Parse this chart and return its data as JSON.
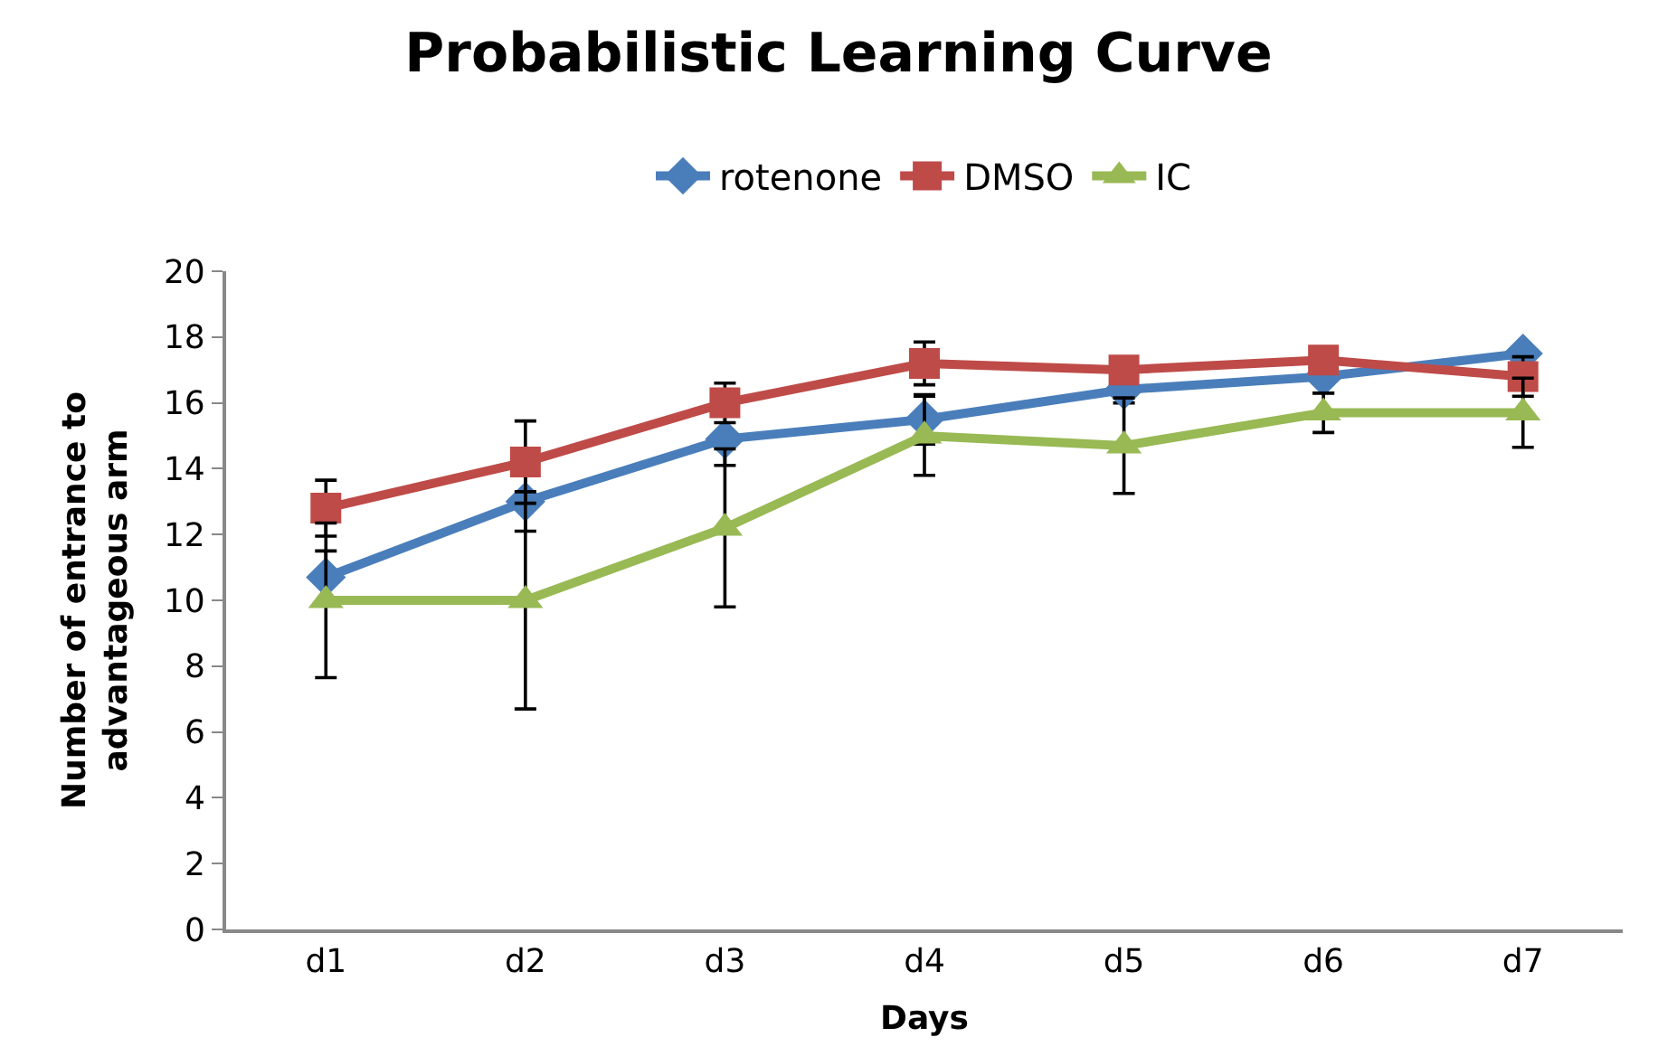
{
  "chart_data": {
    "type": "line",
    "title": "Probabilistic Learning Curve",
    "xlabel": "Days",
    "ylabel": "Number of entrance to\nadvantageous arm",
    "categories": [
      "d1",
      "d2",
      "d3",
      "d4",
      "d5",
      "d6",
      "d7"
    ],
    "series": [
      {
        "name": "rotenone",
        "color": "#4a7ebb",
        "marker": "diamond",
        "values": [
          10.7,
          13.0,
          14.9,
          15.5,
          16.4,
          16.8,
          17.5
        ],
        "errors": [
          0.8,
          0.9,
          0.8,
          0.75,
          0.4,
          0.5,
          null
        ]
      },
      {
        "name": "DMSO",
        "color": "#be4b48",
        "marker": "square",
        "values": [
          12.8,
          14.2,
          16.0,
          17.2,
          17.0,
          17.3,
          16.8
        ],
        "errors": [
          0.85,
          1.25,
          0.6,
          0.65,
          null,
          null,
          0.6
        ]
      },
      {
        "name": "IC",
        "color": "#98b954",
        "marker": "triangle",
        "values": [
          10.0,
          10.0,
          12.2,
          15.0,
          14.7,
          15.7,
          15.7
        ],
        "errors": [
          2.35,
          3.3,
          2.4,
          1.2,
          1.45,
          0.6,
          1.05
        ]
      }
    ],
    "ylim": [
      0,
      20
    ],
    "yticks": [
      0,
      2,
      4,
      6,
      8,
      10,
      12,
      14,
      16,
      18,
      20
    ],
    "legend": "top"
  }
}
